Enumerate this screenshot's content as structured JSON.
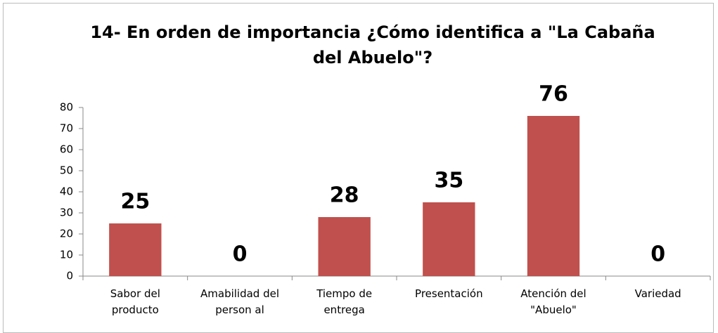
{
  "chart_data": {
    "type": "bar",
    "title": "14- En orden de importancia ¿Cómo identifica a \"La Cabaña del Abuelo\"?",
    "categories": [
      "Sabor del producto",
      "Amabilidad del person al",
      "Tiempo de entrega",
      "Presentación",
      "Atención del \"Abuelo\"",
      "Variedad"
    ],
    "values": [
      25,
      0,
      28,
      35,
      76,
      0
    ],
    "color": "#c0504d",
    "ylim": [
      0,
      80
    ],
    "yticks": [
      0,
      10,
      20,
      30,
      40,
      50,
      60,
      70,
      80
    ],
    "grid": false
  }
}
